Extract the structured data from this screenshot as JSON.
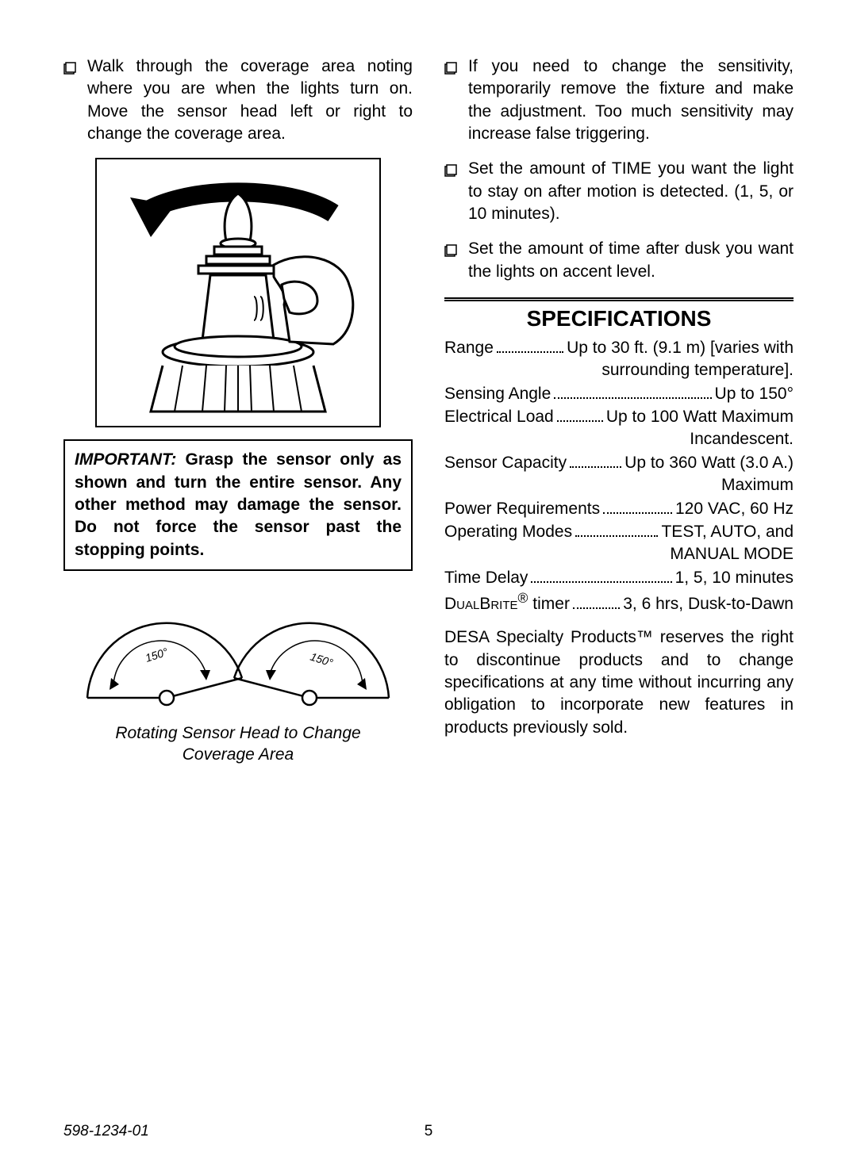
{
  "left": {
    "bullets": [
      "Walk through the coverage area noting where you are when the lights turn on. Move the sensor head left or right to change the coverage area."
    ],
    "important_label": "IMPORTANT:",
    "important_text": " Grasp the sensor only as shown and turn the entire sensor. Any other method may damage the sensor. Do not force the sensor past the stopping points.",
    "angle_label": "150°",
    "caption_line1": "Rotating Sensor Head to Change",
    "caption_line2": "Coverage Area"
  },
  "right": {
    "bullets": [
      "If you need to change the sensitivity, temporarily remove the fixture and make the adjustment. Too much sensitivity may increase false triggering.",
      "Set the amount of TIME you want the light to stay on after motion is detected. (1, 5, or 10 minutes).",
      "Set the amount of time after dusk you want the lights on accent level."
    ],
    "spec_heading": "SPECIFICATIONS",
    "specs": [
      {
        "label": "Range",
        "value": "Up to 30 ft. (9.1 m) [varies with",
        "cont": "surrounding temperature]."
      },
      {
        "label": "Sensing Angle",
        "value": "Up to 150°"
      },
      {
        "label": "Electrical Load",
        "value": "Up to 100 Watt Maximum",
        "cont": "Incandescent."
      },
      {
        "label": "Sensor Capacity",
        "value": "Up to 360 Watt (3.0 A.)",
        "cont": "Maximum"
      },
      {
        "label": "Power Requirements",
        "value": "120 VAC, 60 Hz"
      },
      {
        "label": "Operating Modes",
        "value": "TEST, AUTO, and",
        "cont": "MANUAL MODE"
      },
      {
        "label": "Time Delay",
        "value": "1, 5, 10 minutes"
      }
    ],
    "dualbrite_label": "DualBrite",
    "dualbrite_suffix": " timer",
    "dualbrite_value": "3, 6 hrs, Dusk-to-Dawn",
    "disclaimer": "DESA Specialty Products™ reserves the right to discontinue products and to change specifications at any time without incurring any obligation to incorporate new features in products previously sold."
  },
  "footer": {
    "docnum": "598-1234-01",
    "pagenum": "5"
  },
  "colors": {
    "text": "#000000",
    "bg": "#ffffff"
  }
}
